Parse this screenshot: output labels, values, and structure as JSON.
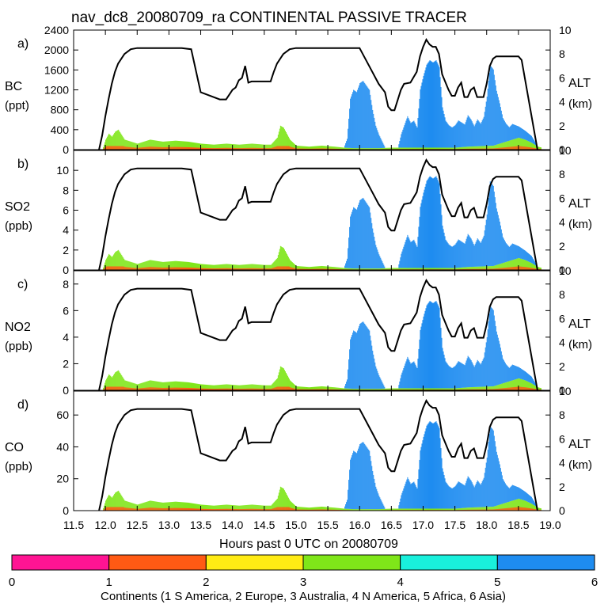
{
  "title": "nav_dc8_20080709_ra CONTINENTAL PASSIVE TRACER",
  "xlabel": "Hours past 0 UTC on 20080709",
  "x_ticks": [
    "11.5",
    "12.0",
    "12.5",
    "13.0",
    "13.5",
    "14.0",
    "14.5",
    "15.0",
    "15.5",
    "16.0",
    "16.5",
    "17.0",
    "17.5",
    "18.0",
    "18.5",
    "19.0"
  ],
  "alt_axis": {
    "label": "ALT",
    "unit": "(km)",
    "ticks": [
      "0",
      "2",
      "4",
      "6",
      "8",
      "10"
    ],
    "ylim": [
      0,
      10
    ]
  },
  "panels": [
    {
      "letter": "a)",
      "label": "BC",
      "unit": "(ppt)",
      "ylim": [
        0,
        2400
      ],
      "ticks": [
        "0",
        "400",
        "800",
        "1200",
        "1600",
        "2000",
        "2400"
      ]
    },
    {
      "letter": "b)",
      "label": "SO2",
      "unit": "(ppb)",
      "ylim": [
        0,
        12
      ],
      "ticks": [
        "0",
        "2",
        "4",
        "6",
        "8",
        "10"
      ]
    },
    {
      "letter": "c)",
      "label": "NO2",
      "unit": "(ppb)",
      "ylim": [
        0,
        9
      ],
      "ticks": [
        "0",
        "2",
        "4",
        "6",
        "8"
      ]
    },
    {
      "letter": "d)",
      "label": "CO",
      "unit": "(ppb)",
      "ylim": [
        0,
        75
      ],
      "ticks": [
        "0",
        "20",
        "40",
        "60"
      ]
    }
  ],
  "colorbar": {
    "ticks": [
      "0",
      "1",
      "2",
      "3",
      "4",
      "5",
      "6"
    ],
    "colors": [
      "#ff1493",
      "#ff5a14",
      "#ffeb14",
      "#7fe619",
      "#19f0dc",
      "#1e8cf0"
    ],
    "caption": "Continents (1 S America, 2 Europe, 3 Australia, 4 N America, 5 Africa, 6 Asia)"
  },
  "chart_data": {
    "type": "area",
    "title": "nav_dc8_20080709_ra CONTINENTAL PASSIVE TRACER",
    "xlabel": "Hours past 0 UTC on 20080709",
    "xlim": [
      11.5,
      19.0
    ],
    "altitude_km": {
      "x": [
        11.9,
        11.95,
        12.0,
        12.05,
        12.1,
        12.15,
        12.2,
        12.3,
        12.4,
        12.5,
        13.0,
        13.2,
        13.35,
        13.45,
        13.5,
        13.8,
        13.9,
        14.0,
        14.05,
        14.1,
        14.15,
        14.2,
        14.25,
        14.3,
        14.6,
        14.65,
        14.7,
        14.8,
        14.9,
        15.0,
        15.2,
        15.7,
        16.0,
        16.2,
        16.3,
        16.4,
        16.45,
        16.5,
        16.55,
        16.65,
        16.7,
        16.8,
        16.9,
        16.95,
        17.0,
        17.05,
        17.1,
        17.15,
        17.2,
        17.25,
        17.3,
        17.4,
        17.45,
        17.5,
        17.55,
        17.6,
        17.65,
        17.7,
        17.75,
        17.8,
        17.85,
        17.95,
        18.0,
        18.05,
        18.1,
        18.15,
        18.2,
        18.5,
        18.55,
        18.6,
        18.65,
        18.7,
        18.75,
        18.8
      ],
      "y": [
        0,
        1.2,
        2.8,
        4.2,
        5.5,
        6.5,
        7.2,
        8.0,
        8.4,
        8.5,
        8.5,
        8.5,
        8.4,
        6.0,
        4.8,
        4.2,
        4.2,
        5.0,
        5.2,
        5.8,
        6.0,
        7.0,
        5.6,
        5.7,
        5.7,
        6.5,
        7.2,
        8.0,
        8.4,
        8.5,
        8.5,
        8.5,
        8.5,
        6.5,
        5.5,
        4.8,
        3.6,
        3.3,
        3.3,
        5.0,
        5.5,
        5.6,
        6.5,
        7.8,
        8.6,
        9.2,
        8.8,
        8.6,
        8.6,
        8.0,
        6.3,
        5.0,
        4.5,
        4.5,
        5.2,
        5.6,
        4.4,
        4.4,
        5.0,
        5.2,
        4.4,
        4.4,
        5.5,
        7.0,
        7.6,
        7.8,
        7.8,
        7.8,
        7.5,
        6.0,
        4.5,
        3.0,
        1.5,
        0
      ]
    },
    "bc_asia_ppt": {
      "x": [
        11.5,
        15.75,
        15.8,
        15.85,
        15.9,
        15.95,
        16.0,
        16.05,
        16.1,
        16.15,
        16.2,
        16.25,
        16.3,
        16.35,
        16.4,
        16.6,
        16.65,
        16.7,
        16.75,
        16.8,
        16.85,
        16.9,
        16.95,
        17.0,
        17.05,
        17.1,
        17.15,
        17.2,
        17.25,
        17.3,
        17.35,
        17.4,
        17.45,
        17.5,
        17.55,
        17.6,
        17.65,
        17.7,
        17.75,
        17.8,
        17.85,
        17.9,
        17.95,
        18.0,
        18.05,
        18.1,
        18.15,
        18.2,
        18.25,
        18.3,
        18.35,
        18.4,
        18.5,
        18.6,
        18.7,
        18.8,
        19.0
      ],
      "values": [
        0,
        0,
        200,
        1100,
        1300,
        1250,
        1450,
        1500,
        1400,
        1300,
        850,
        500,
        300,
        150,
        0,
        0,
        300,
        500,
        700,
        550,
        600,
        450,
        1300,
        1600,
        1850,
        1950,
        1900,
        1950,
        1800,
        900,
        600,
        500,
        450,
        500,
        600,
        550,
        500,
        700,
        600,
        450,
        600,
        500,
        650,
        1100,
        1800,
        1700,
        1200,
        900,
        550,
        400,
        300,
        350,
        250,
        200,
        150,
        0,
        0
      ]
    },
    "tracer_other_continents": {
      "x": [
        11.5,
        11.95,
        12.0,
        12.05,
        12.1,
        12.15,
        12.2,
        12.3,
        12.5,
        12.7,
        12.9,
        13.1,
        13.3,
        13.5,
        13.7,
        13.9,
        14.1,
        14.3,
        14.5,
        14.6,
        14.7,
        14.75,
        14.8,
        14.9,
        15.0,
        15.2,
        15.4,
        15.6,
        15.75,
        15.9,
        16.1,
        16.3,
        16.5,
        16.7,
        16.9,
        17.1,
        17.3,
        17.5,
        17.7,
        17.9,
        18.1,
        18.2,
        18.3,
        18.4,
        18.5,
        18.6,
        18.7,
        18.8,
        19.0
      ],
      "values": [
        0,
        0,
        1.0,
        1.6,
        1.3,
        1.8,
        2.0,
        1.0,
        0.6,
        1.0,
        0.8,
        0.9,
        0.8,
        0.6,
        0.5,
        0.6,
        0.5,
        0.6,
        0.5,
        0.5,
        1.2,
        2.4,
        2.2,
        1.0,
        0.4,
        0.3,
        0.4,
        0.3,
        0.2,
        0.15,
        0.15,
        0.15,
        0.2,
        0.2,
        0.2,
        0.2,
        0.2,
        0.2,
        0.3,
        0.35,
        0.4,
        0.6,
        0.8,
        1.0,
        1.2,
        1.0,
        0.7,
        0.3,
        0
      ]
    }
  }
}
